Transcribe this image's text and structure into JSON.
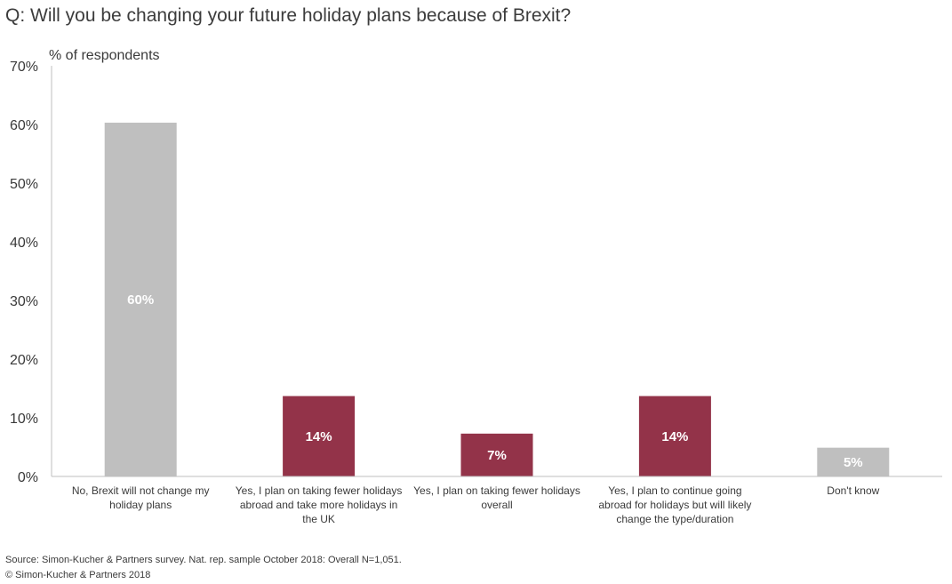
{
  "title": "Q: Will you be changing your future holiday plans because of Brexit?",
  "footer": {
    "source": "Source: Simon-Kucher & Partners survey. Nat. rep. sample October 2018: Overall N=1,051.",
    "copyright": "© Simon-Kucher & Partners 2018"
  },
  "chart_data": {
    "type": "bar",
    "ylabel": "% of respondents",
    "xlabel": "",
    "ylim": [
      0,
      70
    ],
    "yticks": [
      "0%",
      "10%",
      "20%",
      "30%",
      "40%",
      "50%",
      "60%",
      "70%"
    ],
    "grid": false,
    "categories": [
      [
        "No, Brexit will not change my",
        "holiday plans"
      ],
      [
        "Yes, I plan on taking fewer holidays",
        "abroad and take more holidays in",
        "the UK"
      ],
      [
        "Yes, I plan on taking fewer holidays",
        "overall"
      ],
      [
        "Yes, I plan to continue going",
        "abroad for holidays but will likely",
        "change the type/duration"
      ],
      [
        "Don't know"
      ]
    ],
    "values": [
      60.3,
      13.7,
      7.3,
      13.7,
      4.9
    ],
    "data_labels": [
      "60%",
      "14%",
      "7%",
      "14%",
      "5%"
    ],
    "colors": [
      "#bfbfbf",
      "#933349",
      "#933349",
      "#933349",
      "#bfbfbf"
    ],
    "axis_color": "#bfbfbf",
    "label_color": "#ffffff"
  }
}
